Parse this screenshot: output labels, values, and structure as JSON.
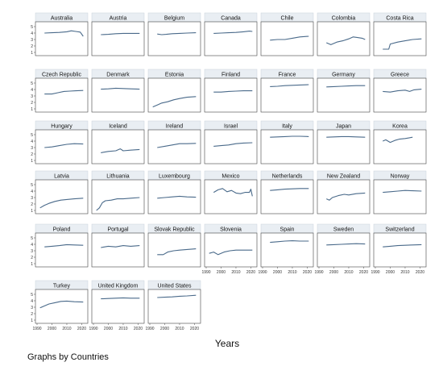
{
  "chart_data": {
    "type": "line",
    "title": "",
    "xlabel": "Years",
    "ylabel": "",
    "xlim": [
      1990,
      2023
    ],
    "ylim": [
      1,
      5
    ],
    "xticks": [
      1990,
      2000,
      2010,
      2020
    ],
    "yticks": [
      1,
      2,
      3,
      4,
      5
    ],
    "grid": false,
    "panel_title_bg": "#e9eef3",
    "line_color": "#4a6a8a",
    "footer": "Graphs by Countries",
    "panels": [
      {
        "name": "Australia",
        "x": [
          1995,
          2000,
          2005,
          2010,
          2013,
          2016,
          2019,
          2021
        ],
        "y": [
          4.0,
          4.05,
          4.1,
          4.2,
          4.35,
          4.25,
          4.15,
          3.5
        ]
      },
      {
        "name": "Austria",
        "x": [
          1995,
          2000,
          2005,
          2010,
          2015,
          2021
        ],
        "y": [
          3.75,
          3.8,
          3.9,
          3.95,
          3.95,
          3.95
        ]
      },
      {
        "name": "Belgium",
        "x": [
          1995,
          1998,
          2001,
          2005,
          2010,
          2015,
          2021
        ],
        "y": [
          3.85,
          3.75,
          3.8,
          3.9,
          3.95,
          4.0,
          4.05
        ]
      },
      {
        "name": "Canada",
        "x": [
          1995,
          2000,
          2005,
          2010,
          2015,
          2019,
          2021
        ],
        "y": [
          3.95,
          4.0,
          4.05,
          4.1,
          4.2,
          4.3,
          4.25
        ]
      },
      {
        "name": "Chile",
        "x": [
          1995,
          2000,
          2005,
          2010,
          2015,
          2021
        ],
        "y": [
          2.9,
          3.0,
          3.0,
          3.2,
          3.4,
          3.5
        ]
      },
      {
        "name": "Colombia",
        "x": [
          1995,
          1998,
          2002,
          2006,
          2010,
          2013,
          2016,
          2019,
          2021
        ],
        "y": [
          2.5,
          2.2,
          2.6,
          2.8,
          3.1,
          3.4,
          3.3,
          3.2,
          3.0
        ]
      },
      {
        "name": "Costa Rica",
        "x": [
          1995,
          1999,
          2000,
          2005,
          2010,
          2015,
          2021
        ],
        "y": [
          1.5,
          1.5,
          2.3,
          2.6,
          2.8,
          3.0,
          3.1
        ]
      },
      {
        "name": "Czech Republic",
        "x": [
          1995,
          2000,
          2004,
          2008,
          2012,
          2016,
          2021
        ],
        "y": [
          3.3,
          3.3,
          3.5,
          3.7,
          3.75,
          3.8,
          3.85
        ]
      },
      {
        "name": "Denmark",
        "x": [
          1995,
          2000,
          2005,
          2010,
          2015,
          2021
        ],
        "y": [
          4.05,
          4.1,
          4.2,
          4.15,
          4.1,
          4.05
        ]
      },
      {
        "name": "Estonia",
        "x": [
          1992,
          1995,
          1998,
          2002,
          2006,
          2010,
          2015,
          2021
        ],
        "y": [
          1.3,
          1.6,
          1.9,
          2.1,
          2.4,
          2.6,
          2.8,
          2.9
        ]
      },
      {
        "name": "Finland",
        "x": [
          1995,
          2000,
          2005,
          2010,
          2015,
          2021
        ],
        "y": [
          3.6,
          3.6,
          3.7,
          3.75,
          3.8,
          3.8
        ]
      },
      {
        "name": "France",
        "x": [
          1995,
          2000,
          2005,
          2010,
          2015,
          2021
        ],
        "y": [
          4.45,
          4.5,
          4.6,
          4.65,
          4.7,
          4.75
        ]
      },
      {
        "name": "Germany",
        "x": [
          1995,
          2000,
          2005,
          2010,
          2015,
          2021
        ],
        "y": [
          4.4,
          4.45,
          4.5,
          4.55,
          4.6,
          4.6
        ]
      },
      {
        "name": "Greece",
        "x": [
          1995,
          2000,
          2005,
          2010,
          2013,
          2016,
          2021
        ],
        "y": [
          3.7,
          3.6,
          3.8,
          3.9,
          3.7,
          3.95,
          4.05
        ]
      },
      {
        "name": "Hungary",
        "x": [
          1995,
          2000,
          2005,
          2010,
          2015,
          2021
        ],
        "y": [
          3.0,
          3.1,
          3.3,
          3.5,
          3.6,
          3.55
        ]
      },
      {
        "name": "Iceland",
        "x": [
          1995,
          2000,
          2005,
          2008,
          2010,
          2015,
          2021
        ],
        "y": [
          2.2,
          2.4,
          2.5,
          2.8,
          2.5,
          2.6,
          2.7
        ]
      },
      {
        "name": "Ireland",
        "x": [
          1995,
          2000,
          2005,
          2010,
          2015,
          2021
        ],
        "y": [
          3.0,
          3.2,
          3.4,
          3.6,
          3.6,
          3.65
        ]
      },
      {
        "name": "Israel",
        "x": [
          1995,
          2000,
          2005,
          2010,
          2015,
          2021
        ],
        "y": [
          3.2,
          3.3,
          3.4,
          3.6,
          3.7,
          3.75
        ]
      },
      {
        "name": "Italy",
        "x": [
          1995,
          2000,
          2005,
          2010,
          2015,
          2021
        ],
        "y": [
          4.6,
          4.65,
          4.7,
          4.75,
          4.75,
          4.7
        ]
      },
      {
        "name": "Japan",
        "x": [
          1995,
          2000,
          2005,
          2010,
          2015,
          2021
        ],
        "y": [
          4.6,
          4.65,
          4.7,
          4.7,
          4.65,
          4.6
        ]
      },
      {
        "name": "Korea",
        "x": [
          1995,
          1997,
          2000,
          2003,
          2006,
          2010,
          2015
        ],
        "y": [
          4.0,
          4.2,
          3.8,
          4.1,
          4.3,
          4.4,
          4.6
        ]
      },
      {
        "name": "Latvia",
        "x": [
          1992,
          1995,
          1998,
          2002,
          2006,
          2010,
          2015,
          2021
        ],
        "y": [
          1.4,
          1.8,
          2.1,
          2.4,
          2.6,
          2.7,
          2.8,
          2.9
        ]
      },
      {
        "name": "Lithuania",
        "x": [
          1992,
          1994,
          1996,
          1998,
          2002,
          2006,
          2010,
          2015,
          2021
        ],
        "y": [
          1.0,
          1.4,
          2.2,
          2.5,
          2.6,
          2.8,
          2.8,
          2.9,
          3.0
        ]
      },
      {
        "name": "Luxembourg",
        "x": [
          1995,
          2000,
          2005,
          2010,
          2015,
          2021
        ],
        "y": [
          2.9,
          3.0,
          3.1,
          3.2,
          3.1,
          3.05
        ]
      },
      {
        "name": "Mexico",
        "x": [
          1995,
          1998,
          2001,
          2004,
          2007,
          2010,
          2013,
          2016,
          2019,
          2020,
          2021
        ],
        "y": [
          3.8,
          4.2,
          4.4,
          3.9,
          4.1,
          3.7,
          3.6,
          3.8,
          3.8,
          4.3,
          3.2
        ]
      },
      {
        "name": "Netherlands",
        "x": [
          1995,
          2000,
          2005,
          2010,
          2015,
          2021
        ],
        "y": [
          4.1,
          4.2,
          4.3,
          4.35,
          4.4,
          4.4
        ]
      },
      {
        "name": "New Zealand",
        "x": [
          1995,
          1997,
          1999,
          2003,
          2007,
          2010,
          2015,
          2021
        ],
        "y": [
          2.8,
          2.6,
          3.0,
          3.3,
          3.5,
          3.4,
          3.6,
          3.7
        ]
      },
      {
        "name": "Norway",
        "x": [
          1995,
          2000,
          2005,
          2010,
          2015,
          2021
        ],
        "y": [
          3.8,
          3.9,
          4.0,
          4.1,
          4.05,
          4.0
        ]
      },
      {
        "name": "Poland",
        "x": [
          1995,
          2000,
          2005,
          2010,
          2015,
          2021
        ],
        "y": [
          3.6,
          3.7,
          3.8,
          3.95,
          3.9,
          3.85
        ]
      },
      {
        "name": "Portugal",
        "x": [
          1995,
          2000,
          2005,
          2010,
          2015,
          2021
        ],
        "y": [
          3.5,
          3.7,
          3.6,
          3.8,
          3.7,
          3.8
        ]
      },
      {
        "name": "Slovak Republic",
        "x": [
          1995,
          1999,
          2002,
          2006,
          2010,
          2015,
          2021
        ],
        "y": [
          2.4,
          2.4,
          2.8,
          3.0,
          3.1,
          3.2,
          3.3
        ]
      },
      {
        "name": "Slovenia",
        "x": [
          1992,
          1995,
          1998,
          2002,
          2006,
          2010,
          2015,
          2021
        ],
        "y": [
          2.6,
          2.8,
          2.4,
          2.8,
          3.0,
          3.1,
          3.1,
          3.1
        ]
      },
      {
        "name": "Spain",
        "x": [
          1995,
          2000,
          2005,
          2010,
          2015,
          2021
        ],
        "y": [
          4.3,
          4.4,
          4.5,
          4.55,
          4.5,
          4.5
        ]
      },
      {
        "name": "Sweden",
        "x": [
          1995,
          2000,
          2005,
          2010,
          2015,
          2021
        ],
        "y": [
          3.9,
          3.95,
          4.0,
          4.05,
          4.1,
          4.05
        ]
      },
      {
        "name": "Switzerland",
        "x": [
          1995,
          2000,
          2005,
          2010,
          2015,
          2021
        ],
        "y": [
          3.6,
          3.7,
          3.8,
          3.85,
          3.9,
          3.95
        ]
      },
      {
        "name": "Turkey",
        "x": [
          1992,
          1995,
          1998,
          2002,
          2006,
          2010,
          2015,
          2021
        ],
        "y": [
          2.9,
          3.2,
          3.5,
          3.7,
          3.9,
          3.95,
          3.85,
          3.8
        ]
      },
      {
        "name": "United Kingdom",
        "x": [
          1995,
          2000,
          2005,
          2010,
          2015,
          2021
        ],
        "y": [
          4.3,
          4.35,
          4.4,
          4.45,
          4.4,
          4.4
        ]
      },
      {
        "name": "United States",
        "x": [
          1995,
          2000,
          2005,
          2010,
          2015,
          2021
        ],
        "y": [
          4.5,
          4.55,
          4.6,
          4.7,
          4.75,
          4.85
        ]
      }
    ]
  }
}
